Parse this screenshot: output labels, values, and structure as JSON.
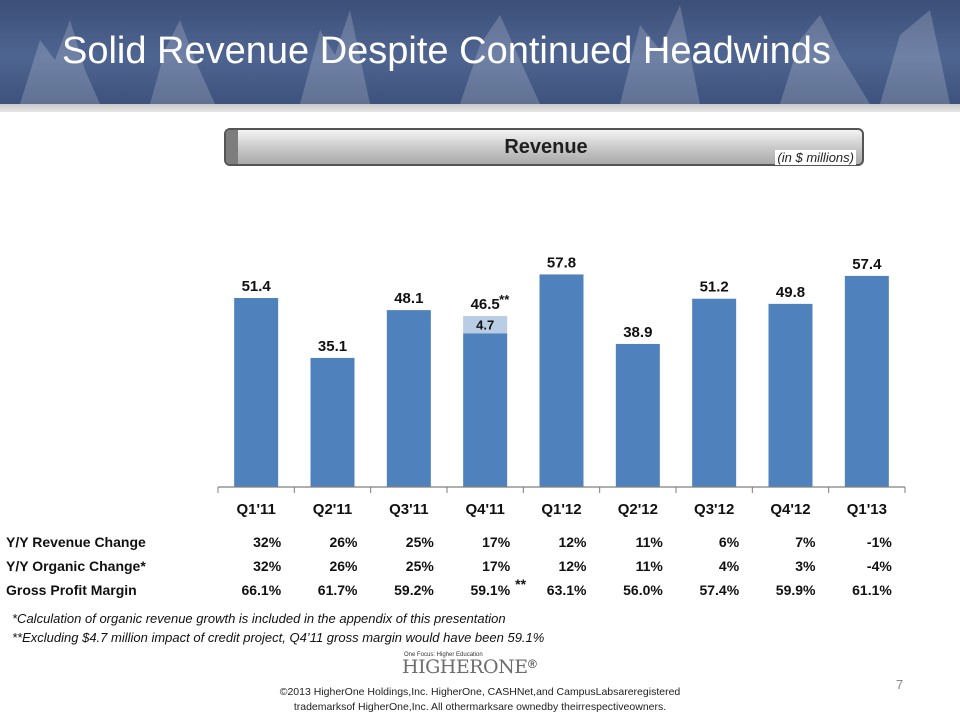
{
  "slide": {
    "title": "Solid Revenue Despite Continued Headwinds",
    "banner_label": "Revenue",
    "units": "(in $ millions)",
    "page_number": "7"
  },
  "chart_data": {
    "type": "bar",
    "title": "Revenue",
    "ylabel": "",
    "xlabel": "",
    "ylim": [
      0,
      62
    ],
    "categories": [
      "Q1'11",
      "Q2'11",
      "Q3'11",
      "Q4'11",
      "Q1'12",
      "Q2'12",
      "Q3'12",
      "Q4'12",
      "Q1'13"
    ],
    "series": [
      {
        "name": "",
        "values": [
          51.4,
          35.1,
          48.1,
          41.8,
          57.8,
          38.9,
          51.2,
          49.8,
          57.4
        ],
        "color": "#4f81bd"
      },
      {
        "name": "",
        "values": [
          0,
          0,
          0,
          4.7,
          0,
          0,
          0,
          0,
          0
        ],
        "color": "#b9cde5"
      }
    ],
    "total_labels": [
      "51.4",
      "35.1",
      "48.1",
      "46.5",
      "57.8",
      "38.9",
      "51.2",
      "49.8",
      "57.4"
    ],
    "segment_label": "4.7",
    "q4_11_marker": "**",
    "grid": false
  },
  "metrics": [
    {
      "label": "Y/Y Revenue Change",
      "values": [
        "32%",
        "26%",
        "25%",
        "17%",
        "12%",
        "11%",
        "6%",
        "7%",
        "-1%"
      ]
    },
    {
      "label": "Y/Y Organic Change*",
      "values": [
        "32%",
        "26%",
        "25%",
        "17%",
        "12%",
        "11%",
        "4%",
        "3%",
        "-4%"
      ]
    },
    {
      "label": "Gross Profit Margin",
      "values": [
        "66.1%",
        "61.7%",
        "59.2%",
        "59.1%",
        "63.1%",
        "56.0%",
        "57.4%",
        "59.9%",
        "61.1%"
      ],
      "marker": "**"
    }
  ],
  "footnotes": [
    "*Calculation of organic revenue growth is included in the appendix of this presentation",
    "**Excluding $4.7 million impact of credit project, Q4’11 gross margin would have been 59.1%"
  ],
  "logo": {
    "tagline": "One Focus: Higher Education",
    "wordmark": "HIGHERONE",
    "registered": "®"
  },
  "legal": {
    "line1": "©2013 HigherOne Holdings,Inc. HigherOne, CASHNet,and CampusLabsareregistered",
    "line2": "trademarksof HigherOne,Inc. All othermarksare ownedby theirrespectiveowners."
  },
  "colors": {
    "header": "#4f6591",
    "bar": "#4f81bd",
    "bar_segment": "#b9cde5"
  }
}
